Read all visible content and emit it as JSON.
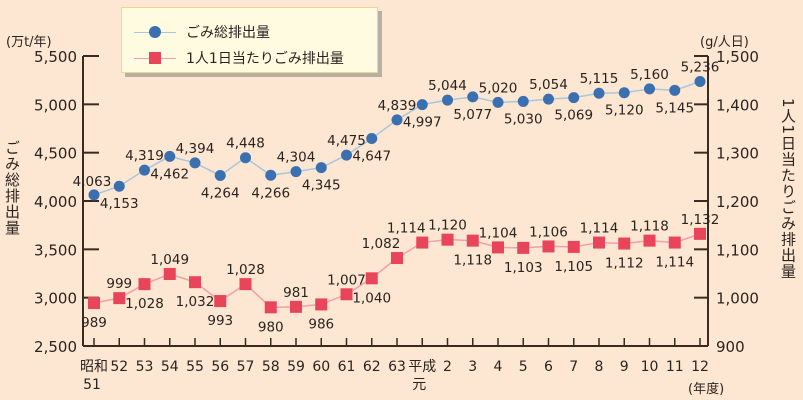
{
  "chart_data": {
    "type": "line",
    "title": "",
    "legend": {
      "position": "top-left",
      "entries": [
        "ごみ総排出量",
        "1人1日当たりごみ排出量"
      ]
    },
    "xlabel": "(年度)",
    "categories": [
      "昭和51",
      "52",
      "53",
      "54",
      "55",
      "56",
      "57",
      "58",
      "59",
      "60",
      "61",
      "62",
      "63",
      "平成元",
      "2",
      "3",
      "4",
      "5",
      "6",
      "7",
      "8",
      "9",
      "10",
      "11",
      "12"
    ],
    "series": [
      {
        "name": "ごみ総排出量",
        "axis": "left",
        "unit": "(万t/年)",
        "color": "#3a6fb0",
        "line_color": "#a9c6dc",
        "marker": "circle",
        "values": [
          4063,
          4153,
          4319,
          4462,
          4394,
          4264,
          4448,
          4266,
          4304,
          4345,
          4475,
          4647,
          4839,
          4997,
          5044,
          5077,
          5020,
          5030,
          5054,
          5069,
          5115,
          5120,
          5160,
          5145,
          5236
        ]
      },
      {
        "name": "1人1日当たりごみ排出量",
        "axis": "right",
        "unit": "(g/人日)",
        "color": "#e8445a",
        "line_color": "#f0a0a8",
        "marker": "square",
        "values": [
          989,
          999,
          1028,
          1049,
          1032,
          993,
          1028,
          980,
          981,
          986,
          1007,
          1040,
          1082,
          1114,
          1120,
          1118,
          1104,
          1103,
          1106,
          1105,
          1114,
          1112,
          1118,
          1114,
          1132
        ]
      }
    ],
    "y_left": {
      "label": "ごみ総排出量",
      "unit": "(万t/年)",
      "ylim": [
        2500,
        5500
      ],
      "ticks": [
        "2,500",
        "3,000",
        "3,500",
        "4,000",
        "4,500",
        "5,000",
        "5,500"
      ]
    },
    "y_right": {
      "label": "1人1日当たりごみ排出量",
      "unit": "(g/人日)",
      "ylim": [
        900,
        1500
      ],
      "ticks": [
        "900",
        "1,000",
        "1,100",
        "1,200",
        "1,300",
        "1,400",
        "1,500"
      ]
    },
    "grid": false
  },
  "labels": {
    "left_unit": "(万t/年)",
    "right_unit": "(g/人日)",
    "left_axis_title": "ごみ総排出量",
    "right_axis_title": "1人1日当たりごみ排出量",
    "x_unit": "(年度)",
    "legend_total": "ごみ総排出量",
    "legend_per_capita": "1人1日当たりごみ排出量"
  },
  "colors": {
    "background": "#fde6d2",
    "axis": "#3a2a20",
    "total_marker": "#3a6fb0",
    "total_line": "#a9c6dc",
    "per_capita_marker": "#e8445a",
    "per_capita_line": "#f0a0a8",
    "legend_bg": "#fffbe0"
  }
}
